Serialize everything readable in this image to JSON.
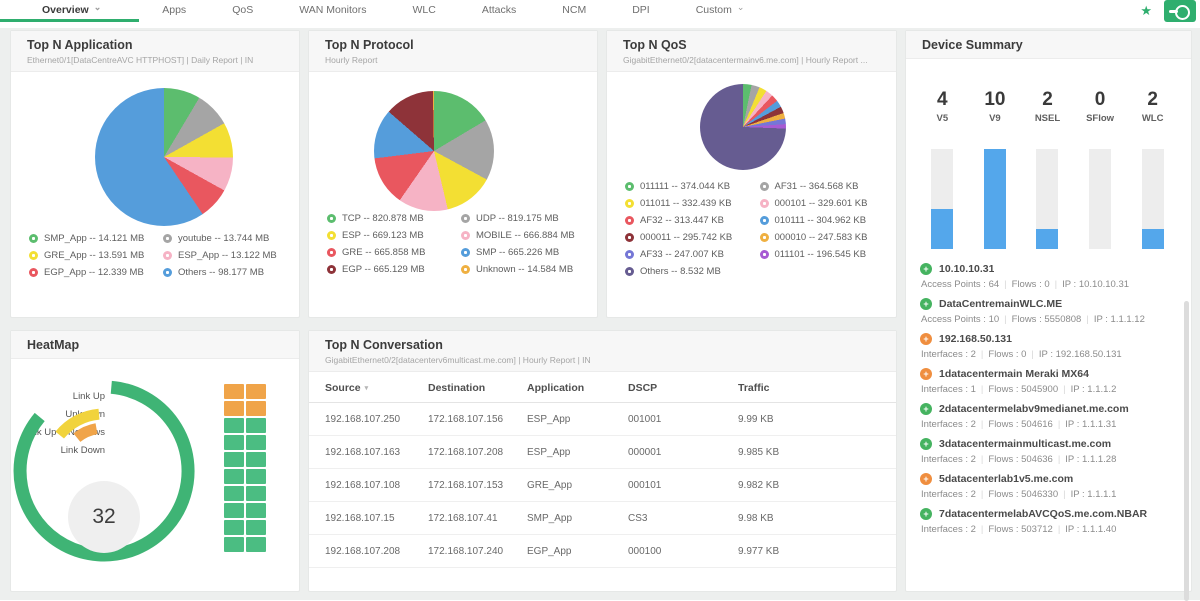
{
  "nav": {
    "accent_color": "#2fae6e",
    "tabs": [
      {
        "label": "Overview",
        "active": true,
        "has_dropdown": true
      },
      {
        "label": "Apps"
      },
      {
        "label": "QoS"
      },
      {
        "label": "WAN Monitors"
      },
      {
        "label": "WLC"
      },
      {
        "label": "Attacks"
      },
      {
        "label": "NCM"
      },
      {
        "label": "DPI"
      },
      {
        "label": "Custom",
        "has_dropdown": true
      }
    ],
    "icons": {
      "favorite": "star-icon",
      "action": "toggle-switch-icon"
    }
  },
  "panels": {
    "application": {
      "title": "Top N Application",
      "subtitle": "Ethernet0/1[DataCentreAVC HTTPHOST] | Daily Report | IN"
    },
    "protocol": {
      "title": "Top N Protocol",
      "subtitle": "Hourly Report"
    },
    "qos": {
      "title": "Top N QoS",
      "subtitle": "GigabitEthernet0/2[datacentermainv6.me.com] | Hourly Report ..."
    },
    "device_summary": {
      "title": "Device Summary"
    },
    "heatmap": {
      "title": "HeatMap"
    },
    "conversation": {
      "title": "Top N Conversation",
      "subtitle": "GigabitEthernet0/2[datacenterv6multicast.me.com] | Hourly Report | IN"
    }
  },
  "device_summary": {
    "devices": [
      {
        "name": "10.10.10.31",
        "status": "up",
        "details": [
          "Access Points : 64",
          "Flows : 0",
          "IP : 10.10.10.31"
        ]
      },
      {
        "name": "DataCentremainWLC.ME",
        "status": "up",
        "details": [
          "Access Points : 10",
          "Flows : 5550808",
          "IP : 1.1.1.12"
        ]
      },
      {
        "name": "192.168.50.131",
        "status": "warn",
        "details": [
          "Interfaces : 2",
          "Flows : 0",
          "IP : 192.168.50.131"
        ]
      },
      {
        "name": "1datacentermain Meraki MX64",
        "status": "warn",
        "details": [
          "Interfaces : 1",
          "Flows : 5045900",
          "IP : 1.1.1.2"
        ]
      },
      {
        "name": "2datacentermelabv9medianet.me.com",
        "status": "up",
        "details": [
          "Interfaces : 2",
          "Flows : 504616",
          "IP : 1.1.1.31"
        ]
      },
      {
        "name": "3datacentermainmulticast.me.com",
        "status": "up",
        "details": [
          "Interfaces : 2",
          "Flows : 504636",
          "IP : 1.1.1.28"
        ]
      },
      {
        "name": "5datacenterlab1v5.me.com",
        "status": "warn",
        "details": [
          "Interfaces : 2",
          "Flows : 5046330",
          "IP : 1.1.1.1"
        ]
      },
      {
        "name": "7datacentermelabAVCQoS.me.com.NBAR",
        "status": "up",
        "details": [
          "Interfaces : 2",
          "Flows : 503712",
          "IP : 1.1.1.40"
        ]
      }
    ],
    "status_colors": {
      "up": "#45b360",
      "warn": "#ef8e3f"
    }
  },
  "chart_data": [
    {
      "id": "top_n_application",
      "type": "pie",
      "title": "Top N Application",
      "unit": "MB",
      "slices": [
        {
          "label": "SMP_App",
          "value": 14.121,
          "value_label": "14.121 MB",
          "color": "#5cbd6e"
        },
        {
          "label": "youtube",
          "value": 13.744,
          "value_label": "13.744 MB",
          "color": "#a5a5a5"
        },
        {
          "label": "GRE_App",
          "value": 13.591,
          "value_label": "13.591 MB",
          "color": "#f3df33"
        },
        {
          "label": "ESP_App",
          "value": 13.122,
          "value_label": "13.122 MB",
          "color": "#f6b3c5"
        },
        {
          "label": "EGP_App",
          "value": 12.339,
          "value_label": "12.339 MB",
          "color": "#e9575f"
        },
        {
          "label": "Others",
          "value": 98.177,
          "value_label": "98.177 MB",
          "color": "#559ddb"
        }
      ]
    },
    {
      "id": "top_n_protocol",
      "type": "pie",
      "title": "Top N Protocol",
      "unit": "MB",
      "slices": [
        {
          "label": "TCP",
          "value": 820.878,
          "value_label": "820.878 MB",
          "color": "#5cbd6e"
        },
        {
          "label": "UDP",
          "value": 819.175,
          "value_label": "819.175 MB",
          "color": "#a5a5a5"
        },
        {
          "label": "ESP",
          "value": 669.123,
          "value_label": "669.123 MB",
          "color": "#f3df33"
        },
        {
          "label": "MOBILE",
          "value": 666.884,
          "value_label": "666.884 MB",
          "color": "#f6b3c5"
        },
        {
          "label": "GRE",
          "value": 665.858,
          "value_label": "665.858 MB",
          "color": "#e9575f"
        },
        {
          "label": "SMP",
          "value": 665.226,
          "value_label": "665.226 MB",
          "color": "#559ddb"
        },
        {
          "label": "EGP",
          "value": 665.129,
          "value_label": "665.129 MB",
          "color": "#8e3339"
        },
        {
          "label": "Unknown",
          "value": 14.584,
          "value_label": "14.584 MB",
          "color": "#efb041"
        }
      ]
    },
    {
      "id": "top_n_qos",
      "type": "pie",
      "title": "Top N QoS",
      "unit": "KB",
      "slices": [
        {
          "label": "011111",
          "value": 374.044,
          "value_label": "374.044 KB",
          "color": "#5cbd6e"
        },
        {
          "label": "AF31",
          "value": 364.568,
          "value_label": "364.568 KB",
          "color": "#a5a5a5"
        },
        {
          "label": "011011",
          "value": 332.439,
          "value_label": "332.439 KB",
          "color": "#f3df33"
        },
        {
          "label": "000101",
          "value": 329.601,
          "value_label": "329.601 KB",
          "color": "#f6b3c5"
        },
        {
          "label": "AF32",
          "value": 313.447,
          "value_label": "313.447 KB",
          "color": "#e9575f"
        },
        {
          "label": "010111",
          "value": 304.962,
          "value_label": "304.962 KB",
          "color": "#559ddb"
        },
        {
          "label": "000011",
          "value": 295.742,
          "value_label": "295.742 KB",
          "color": "#8e3339"
        },
        {
          "label": "000010",
          "value": 247.583,
          "value_label": "247.583 KB",
          "color": "#efb041"
        },
        {
          "label": "AF33",
          "value": 247.007,
          "value_label": "247.007 KB",
          "color": "#7577d6"
        },
        {
          "label": "011101",
          "value": 196.545,
          "value_label": "196.545 KB",
          "color": "#a75bd3"
        },
        {
          "label": "Others",
          "value": 8736.8,
          "value_label": "8.532 MB",
          "color": "#665c91"
        }
      ]
    },
    {
      "id": "device_summary_flows",
      "type": "bar",
      "categories": [
        "V5",
        "V9",
        "NSEL",
        "SFlow",
        "WLC"
      ],
      "values": [
        4,
        10,
        2,
        0,
        2
      ],
      "ymax": 10,
      "bar_color": "#54a7eb",
      "track_color": "#ededed"
    },
    {
      "id": "heatmap_status_rings",
      "type": "donut-rings",
      "center_value": "32",
      "rings": [
        {
          "label": "Link Up",
          "color": "#3fb475",
          "start_deg": -85,
          "end_deg": 220,
          "radius": 84,
          "width": 13
        },
        {
          "label": "Unknown",
          "color": "#f1d33c",
          "start_deg": -95,
          "end_deg": -141,
          "radius": 57,
          "width": 11
        },
        {
          "label": "Link Up & NoFlows",
          "color": "#f0a449",
          "start_deg": -100,
          "end_deg": -129,
          "radius": 43,
          "width": 11
        },
        {
          "label": "Link Down",
          "color": "#e25c5c",
          "start_deg": 0,
          "end_deg": 0,
          "radius": 30,
          "width": 11
        }
      ]
    },
    {
      "id": "heatmap_grid",
      "type": "heatmap",
      "rows": 10,
      "cols": 2,
      "row_colors": [
        "#f0a449",
        "#f0a449",
        "#4bbd82",
        "#4bbd82",
        "#4bbd82",
        "#4bbd82",
        "#4bbd82",
        "#4bbd82",
        "#4bbd82",
        "#4bbd82"
      ]
    },
    {
      "id": "top_n_conversation",
      "type": "table",
      "columns": [
        {
          "label": "Source",
          "sort": true
        },
        {
          "label": "Destination"
        },
        {
          "label": "Application"
        },
        {
          "label": "DSCP"
        },
        {
          "label": "Traffic"
        }
      ],
      "rows": [
        [
          "192.168.107.250",
          "172.168.107.156",
          "ESP_App",
          "001001",
          "9.99 KB"
        ],
        [
          "192.168.107.163",
          "172.168.107.208",
          "ESP_App",
          "000001",
          "9.985 KB"
        ],
        [
          "192.168.107.108",
          "172.168.107.153",
          "GRE_App",
          "000101",
          "9.982 KB"
        ],
        [
          "192.168.107.15",
          "172.168.107.41",
          "SMP_App",
          "CS3",
          "9.98 KB"
        ],
        [
          "192.168.107.208",
          "172.168.107.240",
          "EGP_App",
          "000100",
          "9.977 KB"
        ]
      ]
    }
  ]
}
